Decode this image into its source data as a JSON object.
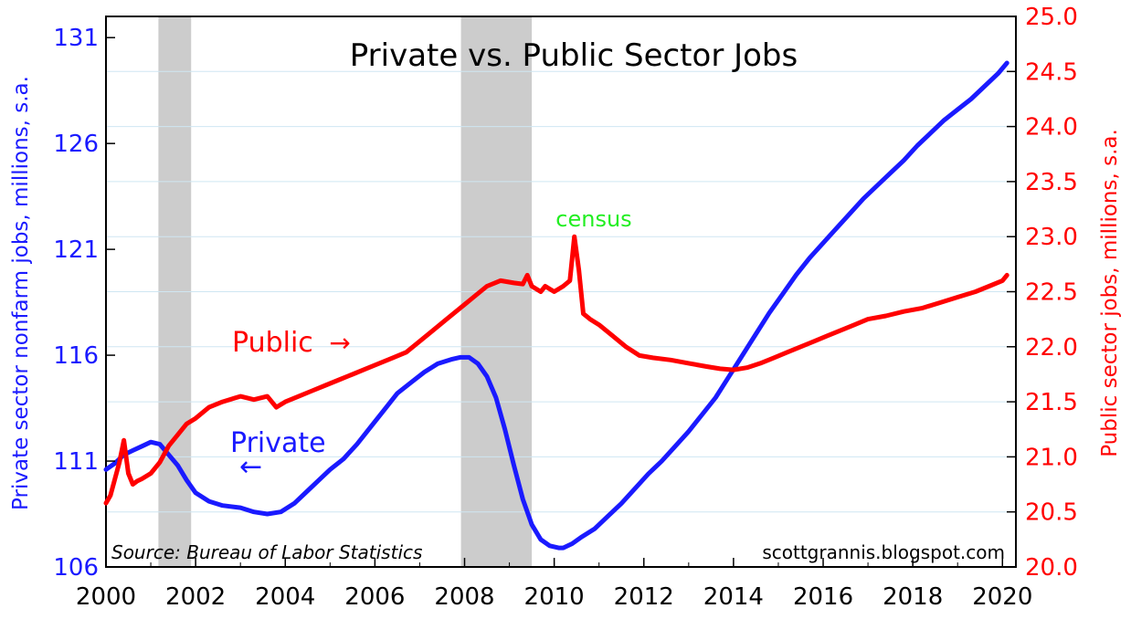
{
  "chart_data": {
    "type": "line",
    "title": "Private vs. Public Sector Jobs",
    "source": "Source: Bureau of Labor Statistics",
    "credit": "scottgrannis.blogspot.com",
    "x_ticks": [
      "2000",
      "2002",
      "2004",
      "2006",
      "2008",
      "2010",
      "2012",
      "2014",
      "2016",
      "2018",
      "2020"
    ],
    "xlim": [
      2000,
      2020.3
    ],
    "y_left": {
      "label": "Private sector nonfarm jobs, millions, s.a.",
      "ticks": [
        "106",
        "111",
        "116",
        "121",
        "126",
        "131"
      ],
      "ylim": [
        106,
        132
      ],
      "color": "#1a1aff"
    },
    "y_right": {
      "label": "Public sector jobs, millions, s.a.",
      "ticks": [
        "20.0",
        "20.5",
        "21.0",
        "21.5",
        "22.0",
        "22.5",
        "23.0",
        "23.5",
        "24.0",
        "24.5",
        "25.0"
      ],
      "ylim": [
        20.0,
        25.0
      ],
      "color": "#ff0000"
    },
    "recessions": [
      [
        2001.17,
        2001.9
      ],
      [
        2007.92,
        2009.5
      ]
    ],
    "annotations": {
      "public_label": "Public",
      "public_arrow": "→",
      "private_label": "Private",
      "private_arrow": "←",
      "census_label": "census",
      "census_color": "#22ee22"
    },
    "series": [
      {
        "name": "Private",
        "axis": "left",
        "color": "#1a1aff",
        "x": [
          2000.0,
          2000.2,
          2000.4,
          2000.6,
          2000.8,
          2001.0,
          2001.2,
          2001.4,
          2001.6,
          2001.8,
          2002.0,
          2002.3,
          2002.6,
          2003.0,
          2003.3,
          2003.6,
          2003.9,
          2004.2,
          2004.5,
          2004.8,
          2005.0,
          2005.3,
          2005.6,
          2005.9,
          2006.2,
          2006.5,
          2006.8,
          2007.1,
          2007.4,
          2007.7,
          2007.9,
          2008.1,
          2008.3,
          2008.5,
          2008.7,
          2008.9,
          2009.1,
          2009.3,
          2009.5,
          2009.7,
          2009.9,
          2010.1,
          2010.2,
          2010.4,
          2010.6,
          2010.9,
          2011.2,
          2011.5,
          2011.8,
          2012.1,
          2012.4,
          2012.7,
          2013.0,
          2013.3,
          2013.6,
          2013.9,
          2014.2,
          2014.5,
          2014.8,
          2015.1,
          2015.4,
          2015.7,
          2016.0,
          2016.3,
          2016.6,
          2016.9,
          2017.2,
          2017.5,
          2017.8,
          2018.1,
          2018.4,
          2018.7,
          2019.0,
          2019.3,
          2019.6,
          2019.9,
          2020.1
        ],
        "values": [
          110.6,
          110.9,
          111.3,
          111.5,
          111.7,
          111.9,
          111.8,
          111.3,
          110.8,
          110.1,
          109.5,
          109.1,
          108.9,
          108.8,
          108.6,
          108.5,
          108.6,
          109.0,
          109.6,
          110.2,
          110.6,
          111.1,
          111.8,
          112.6,
          113.4,
          114.2,
          114.7,
          115.2,
          115.6,
          115.8,
          115.9,
          115.9,
          115.6,
          115.0,
          114.0,
          112.5,
          110.8,
          109.2,
          108.0,
          107.3,
          107.0,
          106.9,
          106.9,
          107.1,
          107.4,
          107.8,
          108.4,
          109.0,
          109.7,
          110.4,
          111.0,
          111.7,
          112.4,
          113.2,
          114.0,
          115.0,
          116.0,
          117.0,
          118.0,
          118.9,
          119.8,
          120.6,
          121.3,
          122.0,
          122.7,
          123.4,
          124.0,
          124.6,
          125.2,
          125.9,
          126.5,
          127.1,
          127.6,
          128.1,
          128.7,
          129.3,
          129.8
        ]
      },
      {
        "name": "Public",
        "axis": "right",
        "color": "#ff0000",
        "x": [
          2000.0,
          2000.1,
          2000.2,
          2000.3,
          2000.4,
          2000.5,
          2000.6,
          2000.7,
          2000.8,
          2001.0,
          2001.2,
          2001.4,
          2001.6,
          2001.8,
          2002.0,
          2002.3,
          2002.6,
          2003.0,
          2003.3,
          2003.6,
          2003.8,
          2004.0,
          2004.3,
          2004.6,
          2004.9,
          2005.2,
          2005.5,
          2005.8,
          2006.1,
          2006.4,
          2006.7,
          2007.0,
          2007.3,
          2007.6,
          2007.9,
          2008.2,
          2008.5,
          2008.8,
          2009.1,
          2009.3,
          2009.4,
          2009.5,
          2009.7,
          2009.8,
          2010.0,
          2010.2,
          2010.35,
          2010.45,
          2010.55,
          2010.65,
          2010.8,
          2011.0,
          2011.3,
          2011.6,
          2011.9,
          2012.2,
          2012.6,
          2013.0,
          2013.4,
          2013.7,
          2014.0,
          2014.3,
          2014.6,
          2014.9,
          2015.2,
          2015.5,
          2015.8,
          2016.1,
          2016.4,
          2016.7,
          2017.0,
          2017.4,
          2017.8,
          2018.2,
          2018.6,
          2019.0,
          2019.4,
          2019.7,
          2020.0,
          2020.1
        ],
        "values": [
          20.58,
          20.65,
          20.8,
          20.95,
          21.15,
          20.85,
          20.75,
          20.78,
          20.8,
          20.85,
          20.95,
          21.1,
          21.2,
          21.3,
          21.35,
          21.45,
          21.5,
          21.55,
          21.52,
          21.55,
          21.45,
          21.5,
          21.55,
          21.6,
          21.65,
          21.7,
          21.75,
          21.8,
          21.85,
          21.9,
          21.95,
          22.05,
          22.15,
          22.25,
          22.35,
          22.45,
          22.55,
          22.6,
          22.58,
          22.57,
          22.65,
          22.55,
          22.5,
          22.55,
          22.5,
          22.55,
          22.6,
          23.0,
          22.7,
          22.3,
          22.25,
          22.2,
          22.1,
          22.0,
          21.92,
          21.9,
          21.88,
          21.85,
          21.82,
          21.8,
          21.79,
          21.81,
          21.85,
          21.9,
          21.95,
          22.0,
          22.05,
          22.1,
          22.15,
          22.2,
          22.25,
          22.28,
          22.32,
          22.35,
          22.4,
          22.45,
          22.5,
          22.55,
          22.6,
          22.65
        ]
      }
    ]
  }
}
